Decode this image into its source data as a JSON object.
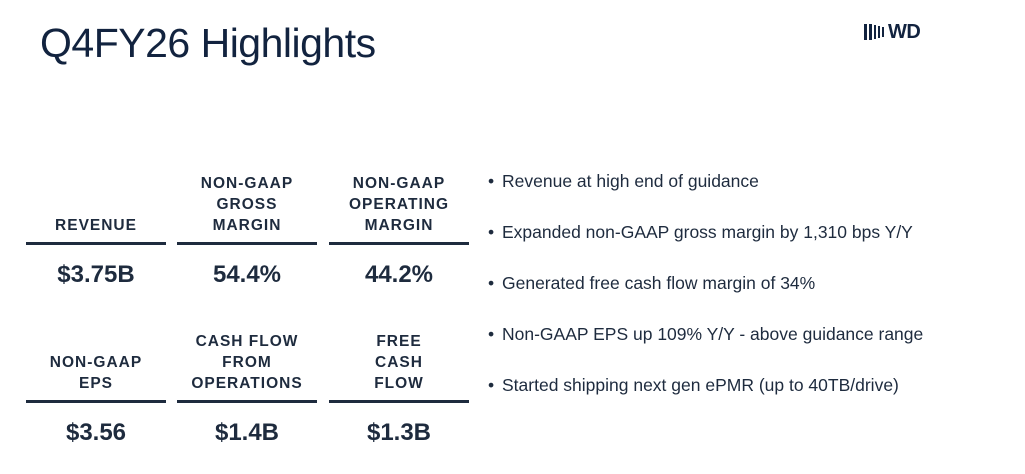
{
  "header": {
    "title": "Q4FY26 Highlights",
    "logo_text": "WD"
  },
  "metrics": [
    {
      "label": "REVENUE",
      "value": "$3.75B"
    },
    {
      "label": "NON-GAAP\nGROSS\nMARGIN",
      "value": "54.4%"
    },
    {
      "label": "NON-GAAP\nOPERATING\nMARGIN",
      "value": "44.2%"
    },
    {
      "label": "NON-GAAP\nEPS",
      "value": "$3.56"
    },
    {
      "label": "CASH FLOW\nFROM\nOPERATIONS",
      "value": "$1.4B"
    },
    {
      "label": "FREE\nCASH\nFLOW",
      "value": "$1.3B"
    }
  ],
  "bullets": [
    "Revenue at high end of guidance",
    "Expanded non-GAAP gross margin by 1,310 bps Y/Y",
    "Generated free cash flow margin of 34%",
    "Non-GAAP EPS up 109% Y/Y - above guidance range",
    "Started shipping next gen ePMR (up to 40TB/drive)"
  ],
  "colors": {
    "text": "#1e2b3e",
    "title": "#12233f",
    "background": "#ffffff"
  }
}
